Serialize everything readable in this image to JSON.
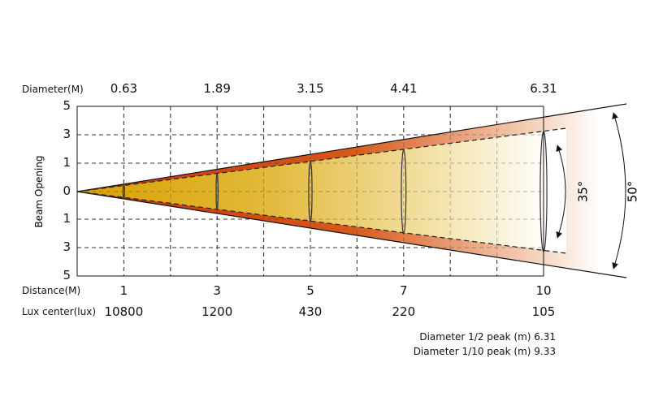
{
  "labels": {
    "diameter": "Diameter(M)",
    "distance": "Distance(M)",
    "lux": "Lux center(lux)",
    "y_axis": "Beam Opening",
    "beam_angle": "35°",
    "field_angle": "50°",
    "half_peak": "Diameter 1/2 peak (m) 6.31",
    "tenth_peak": "Diameter 1/10 peak (m) 9.33"
  },
  "y_ticks": [
    "5",
    "3",
    "1",
    "0",
    "1",
    "3",
    "5"
  ],
  "points": [
    {
      "distance": "1",
      "diameter": "0.63",
      "lux": "10800"
    },
    {
      "distance": "3",
      "diameter": "1.89",
      "lux": "1200"
    },
    {
      "distance": "5",
      "diameter": "3.15",
      "lux": "430"
    },
    {
      "distance": "7",
      "diameter": "4.41",
      "lux": "220"
    },
    {
      "distance": "10",
      "diameter": "6.31",
      "lux": "105"
    }
  ],
  "colors": {
    "beam_core": "#d9a300",
    "beam_edge": "#c83a0a",
    "grid": "#333333"
  },
  "chart_data": {
    "type": "beam-diagram",
    "beam_angle_deg": 35,
    "field_angle_deg": 50,
    "x_range_m": [
      0,
      10
    ],
    "distance_m": [
      1,
      3,
      5,
      7,
      10
    ],
    "diameter_m": [
      0.63,
      1.89,
      3.15,
      4.41,
      6.31
    ],
    "lux_center": [
      10800,
      1200,
      430,
      220,
      105
    ],
    "grid": true
  }
}
